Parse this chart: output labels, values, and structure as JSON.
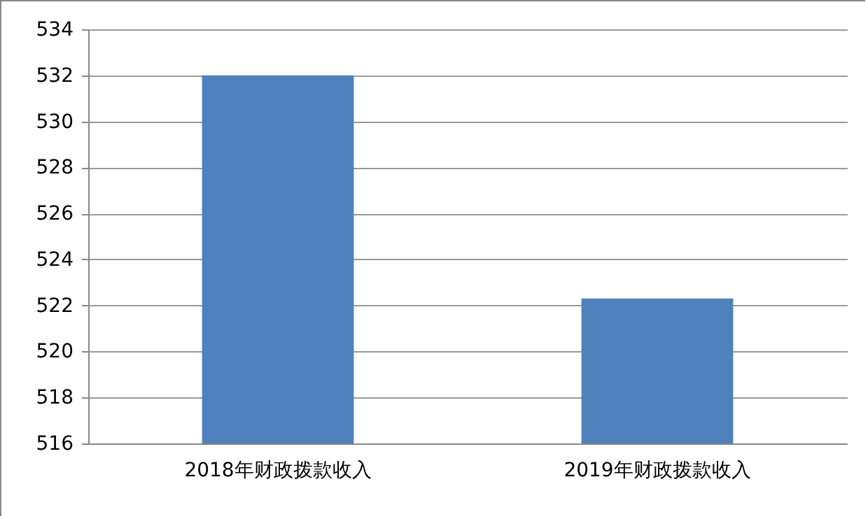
{
  "chart_data": {
    "type": "bar",
    "categories": [
      "2018年财政拨款收入",
      "2019年财政拨款收入"
    ],
    "values": [
      532,
      522.3
    ],
    "color": "#4f81bd",
    "ylim": [
      516,
      534
    ],
    "yticks": [
      516,
      518,
      520,
      522,
      524,
      526,
      528,
      530,
      532,
      534
    ],
    "grid": "y"
  }
}
